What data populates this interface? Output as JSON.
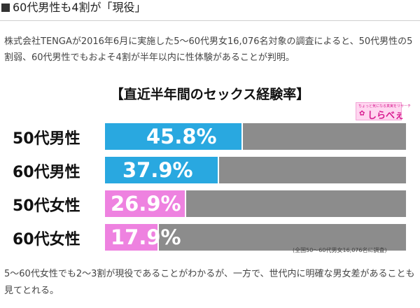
{
  "heading": {
    "text": "60代男性も4割が「現役」"
  },
  "intro": "株式会社TENGAが2016年6月に実施した5～60代男女16,076名対象の調査によると、50代男性の5割弱、60代男性でもおよそ4割が半年以内に性体験があることが判明。",
  "logo": {
    "small_text": "ちょっと気になる真実をリサーチ",
    "text": "しらべぇ"
  },
  "chart_data": {
    "type": "bar",
    "title": "【直近半年間のセックス経験率】",
    "categories": [
      "50代男性",
      "60代男性",
      "50代女性",
      "60代女性"
    ],
    "values": [
      45.8,
      37.9,
      26.9,
      17.9
    ],
    "value_labels": [
      "45.8%",
      "37.9%",
      "26.9%",
      "17.9%"
    ],
    "ylim": [
      0,
      100
    ],
    "series_colors": [
      "#29a8e0",
      "#29a8e0",
      "#ee82e0",
      "#ee82e0"
    ],
    "background_color": "#8c8c8c",
    "note": "(全国50～60代男女16,076名に調査)"
  },
  "conclusion": "5～60代女性でも2～3割が現役であることがわかるが、一方で、世代内に明確な男女差があることも見てとれる。"
}
